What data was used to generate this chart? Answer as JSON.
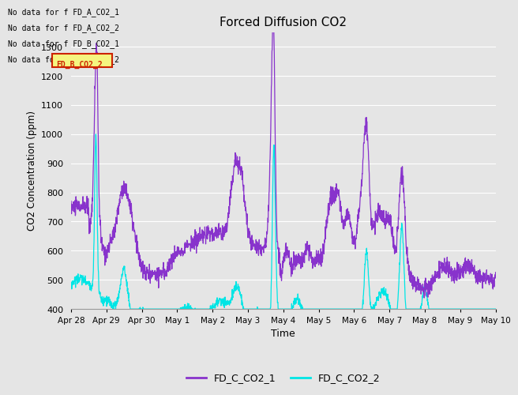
{
  "title": "Forced Diffusion CO2",
  "xlabel": "Time",
  "ylabel": "CO2 Concentration (ppm)",
  "ylim": [
    400,
    1350
  ],
  "yticks": [
    400,
    500,
    600,
    700,
    800,
    900,
    1000,
    1100,
    1200,
    1300
  ],
  "background_color": "#e5e5e5",
  "plot_bg_color": "#e5e5e5",
  "grid_color": "white",
  "line1_color": "#8833cc",
  "line2_color": "#00e5e5",
  "legend_labels": [
    "FD_C_CO2_1",
    "FD_C_CO2_2"
  ],
  "no_data_texts": [
    "No data for f FD_A_CO2_1",
    "No data for f FD_A_CO2_2",
    "No data for f FD_B_CO2_1",
    "No data for f FD_B_CO2_2"
  ],
  "xticklabels": [
    "Apr 28",
    "Apr 29",
    "Apr 30",
    "May 1",
    "May 2",
    "May 3",
    "May 4",
    "May 5",
    "May 6",
    "May 7",
    "May 8",
    "May 9",
    "May 10"
  ],
  "num_points": 2000
}
